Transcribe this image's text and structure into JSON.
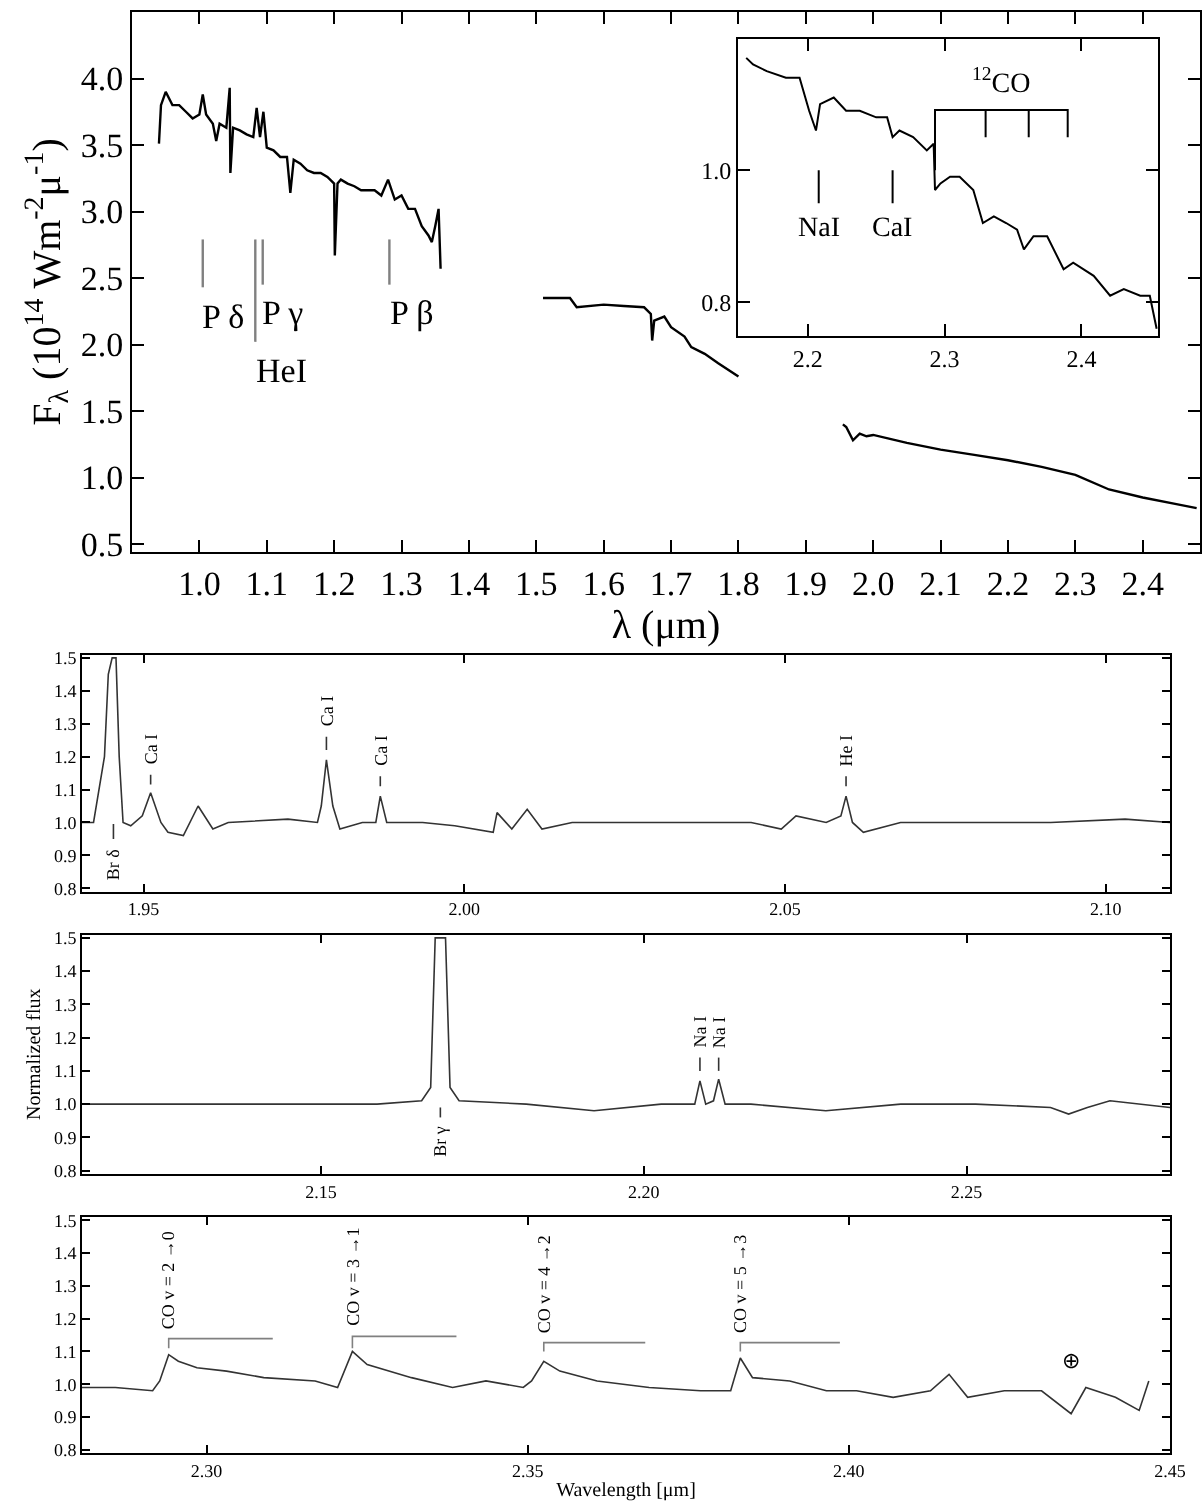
{
  "chart_data": [
    {
      "type": "line",
      "xlabel": "λ (μm)",
      "ylabel": "F$_{λ}$ (10$^{14}$ Wm$^{-2}$μ$^{-1}$)",
      "xlim": [
        0.9,
        2.485
      ],
      "ylim": [
        0.44,
        4.5
      ],
      "xticks": [
        {
          "value": 1,
          "label": "1.0"
        },
        1.1,
        1.2,
        1.3,
        1.4,
        1.5,
        1.6,
        1.7,
        1.8,
        1.9,
        {
          "value": 2,
          "label": "2.0"
        },
        2.1,
        2.2,
        2.3,
        2.4
      ],
      "yticks": [
        0.5,
        {
          "value": 1,
          "label": "1.0"
        },
        1.5,
        {
          "value": 2,
          "label": "2.0"
        },
        2.5,
        {
          "value": 3,
          "label": "3.0"
        },
        3.5,
        {
          "value": 4,
          "label": "4.0"
        }
      ],
      "series": [
        {
          "color": "#000000",
          "x": [
            0.94,
            0.943,
            0.95,
            0.96,
            0.97,
            0.98,
            0.99,
            1.0,
            1.005,
            1.01,
            1.02,
            1.025,
            1.03,
            1.04,
            1.045,
            1.046,
            1.05,
            1.06,
            1.07,
            1.08,
            1.085,
            1.09,
            1.095,
            1.1,
            1.11,
            1.12,
            1.13,
            1.135,
            1.14,
            1.15,
            1.16,
            1.17,
            1.18,
            1.19,
            1.2,
            1.201,
            1.205,
            1.21,
            1.22,
            1.23,
            1.24,
            1.25,
            1.26,
            1.27,
            1.28,
            1.29,
            1.3,
            1.31,
            1.32,
            1.33,
            1.34,
            1.345,
            1.35,
            1.355,
            1.358,
            1.4,
            1.51,
            1.55,
            1.56,
            1.6,
            1.63,
            1.66,
            1.67,
            1.672,
            1.675,
            1.69,
            1.7,
            1.72,
            1.73,
            1.75,
            1.77,
            1.8,
            1.9,
            1.955,
            1.96,
            1.97,
            1.98,
            1.99,
            2.0,
            2.05,
            2.1,
            2.15,
            2.2,
            2.25,
            2.3,
            2.35,
            2.4,
            2.45,
            2.48
          ],
          "values": [
            3.51,
            3.8,
            3.9,
            3.8,
            3.8,
            3.75,
            3.7,
            3.73,
            3.88,
            3.73,
            3.66,
            3.53,
            3.66,
            3.63,
            3.93,
            3.29,
            3.63,
            3.61,
            3.58,
            3.56,
            3.78,
            3.56,
            3.75,
            3.48,
            3.46,
            3.41,
            3.41,
            3.14,
            3.39,
            3.36,
            3.31,
            3.29,
            3.29,
            3.26,
            3.21,
            2.67,
            3.21,
            3.24,
            3.21,
            3.19,
            3.16,
            3.16,
            3.16,
            3.12,
            3.24,
            3.09,
            3.12,
            3.02,
            3.02,
            2.89,
            2.82,
            2.77,
            2.89,
            3.02,
            2.57,
            null,
            2.35,
            2.35,
            2.28,
            2.3,
            2.29,
            2.28,
            2.23,
            2.03,
            2.18,
            2.21,
            2.13,
            2.06,
            1.98,
            1.93,
            1.86,
            1.76,
            null,
            1.4,
            1.38,
            1.28,
            1.33,
            1.31,
            1.32,
            1.26,
            1.21,
            1.17,
            1.13,
            1.08,
            1.02,
            0.91,
            0.85,
            0.8,
            0.77
          ]
        },
        {
          "color": "#808080",
          "x": [
            1.005,
            1.005,
            null,
            1.083,
            1.083,
            null,
            1.094,
            1.094,
            null,
            1.282,
            1.282
          ],
          "values": [
            2.79,
            2.43,
            null,
            2.79,
            2.02,
            null,
            2.79,
            2.45,
            null,
            2.79,
            2.45
          ]
        }
      ],
      "annotations": [
        "P δ",
        "HeI",
        "P γ",
        "P β"
      ]
    },
    {
      "type": "line",
      "xlim": [
        2.149,
        2.456
      ],
      "ylim": [
        0.749,
        1.198
      ],
      "xticks": [
        2.2,
        2.3,
        2.4
      ],
      "yticks": [
        0.8,
        {
          "value": 1,
          "label": "1.0"
        }
      ],
      "series": [
        {
          "color": "#000000",
          "x": [
            2.155,
            2.16,
            2.17,
            2.184,
            2.194,
            2.201,
            2.206,
            2.209,
            2.219,
            2.228,
            2.238,
            2.25,
            2.258,
            2.262,
            2.267,
            2.277,
            2.287,
            2.292,
            2.293,
            2.297,
            2.304,
            2.311,
            2.321,
            2.328,
            2.336,
            2.345,
            2.353,
            2.358,
            2.365,
            2.375,
            2.387,
            2.394,
            2.409,
            2.421,
            2.431,
            2.443,
            2.45,
            2.455
          ],
          "values": [
            1.17,
            1.16,
            1.15,
            1.14,
            1.14,
            1.09,
            1.06,
            1.1,
            1.11,
            1.09,
            1.09,
            1.08,
            1.08,
            1.05,
            1.06,
            1.05,
            1.03,
            1.04,
            0.97,
            0.98,
            0.99,
            0.99,
            0.97,
            0.92,
            0.93,
            0.92,
            0.91,
            0.88,
            0.9,
            0.9,
            0.85,
            0.86,
            0.84,
            0.81,
            0.82,
            0.81,
            0.81,
            0.76
          ]
        },
        {
          "color": "#000000",
          "x": [
            2.208,
            2.208,
            null,
            2.262,
            2.262,
            null,
            2.293,
            2.293,
            2.39,
            2.39,
            null,
            2.33,
            2.33,
            null,
            2.3615,
            2.3615
          ],
          "values": [
            1.0,
            0.95,
            null,
            1.0,
            0.95,
            null,
            1.0,
            1.091,
            1.091,
            1.05,
            null,
            1.091,
            1.05,
            null,
            1.091,
            1.05
          ]
        }
      ],
      "annotations": [
        "NaI",
        "CaI",
        "$^{12}$CO"
      ]
    },
    {
      "type": "line",
      "xlim": [
        1.9404,
        2.11
      ],
      "ylim": [
        0.79,
        1.51
      ],
      "xticks": [
        1.95,
        {
          "value": 2,
          "label": "2.00"
        },
        2.05,
        {
          "value": 2.1,
          "label": "2.10"
        }
      ],
      "yticks": [
        0.8,
        0.9,
        {
          "value": 1,
          "label": "1.0"
        },
        1.1,
        1.2,
        1.3,
        1.4,
        1.5
      ],
      "series": [
        {
          "color": "#333333",
          "x": [
            1.9404,
            1.9422,
            1.9439,
            1.9445,
            1.9451,
            1.9457,
            1.9462,
            1.9468,
            1.948,
            1.9498,
            1.9511,
            1.9527,
            1.9538,
            1.9562,
            1.9585,
            1.9608,
            1.9632,
            1.9725,
            1.9771,
            1.9777,
            1.9785,
            1.9795,
            1.9806,
            1.9841,
            1.9862,
            1.9869,
            1.9879,
            1.9935,
            1.9985,
            2.0045,
            2.0051,
            2.0074,
            2.0098,
            2.0121,
            2.0168,
            2.0272,
            2.0447,
            2.0494,
            2.0517,
            2.0564,
            2.0587,
            2.0595,
            2.0605,
            2.0622,
            2.068,
            2.0797,
            2.0914,
            2.103,
            2.11
          ],
          "values": [
            1.0,
            1.0,
            1.2,
            1.45,
            1.5,
            1.5,
            1.2,
            1.0,
            0.99,
            1.02,
            1.09,
            1.0,
            0.97,
            0.96,
            1.05,
            0.98,
            1.0,
            1.01,
            1.0,
            1.05,
            1.19,
            1.05,
            0.98,
            1.0,
            1.0,
            1.08,
            1.0,
            1.0,
            0.99,
            0.97,
            1.03,
            0.98,
            1.04,
            0.98,
            1.0,
            1.0,
            1.0,
            0.98,
            1.02,
            1.0,
            1.02,
            1.08,
            1.0,
            0.97,
            1.0,
            1.0,
            1.0,
            1.01,
            1.0
          ]
        },
        {
          "color": "#333333",
          "x": [
            1.9453,
            1.9453,
            null,
            1.9511,
            1.9511,
            null,
            1.9785,
            1.9785,
            null,
            1.9869,
            1.9869,
            null,
            2.0595,
            2.0595
          ],
          "values": [
            0.995,
            0.95,
            null,
            1.115,
            1.145,
            null,
            1.22,
            1.26,
            null,
            1.11,
            1.14,
            null,
            1.11,
            1.14
          ]
        }
      ],
      "annotations": [
        "Br δ",
        "Ca I",
        "Ca I",
        "Ca I",
        "He I"
      ]
    },
    {
      "type": "line",
      "ylabel": "Normalized flux",
      "xlim": [
        2.113,
        2.2815
      ],
      "ylim": [
        0.79,
        1.51
      ],
      "xticks": [
        2.15,
        {
          "value": 2.2,
          "label": "2.20"
        },
        2.25
      ],
      "yticks": [
        0.8,
        0.9,
        {
          "value": 1,
          "label": "1.0"
        },
        1.1,
        1.2,
        1.3,
        1.4,
        1.5
      ],
      "series": [
        {
          "color": "#333333",
          "x": [
            2.113,
            2.1239,
            2.1355,
            2.1471,
            2.1587,
            2.1656,
            2.167,
            2.1677,
            2.1693,
            2.17,
            2.1714,
            2.1818,
            2.1923,
            2.2027,
            2.2079,
            2.2087,
            2.2096,
            2.2108,
            2.2116,
            2.2126,
            2.2166,
            2.2282,
            2.2398,
            2.2514,
            2.263,
            2.2658,
            2.2687,
            2.2722,
            2.2815
          ],
          "values": [
            1.0,
            1.0,
            1.0,
            1.0,
            1.0,
            1.01,
            1.05,
            1.5,
            1.5,
            1.05,
            1.01,
            1.0,
            0.98,
            1.0,
            1.0,
            1.07,
            1.0,
            1.01,
            1.075,
            1.0,
            1.0,
            0.98,
            1.0,
            1.0,
            0.99,
            0.97,
            0.99,
            1.01,
            0.99
          ]
        },
        {
          "color": "#333333",
          "x": [
            2.1685,
            2.1685,
            null,
            2.2087,
            2.2087,
            null,
            2.2116,
            2.2116
          ],
          "values": [
            0.99,
            0.96,
            null,
            1.1,
            1.14,
            null,
            1.1,
            1.14
          ]
        }
      ],
      "annotations": [
        "Br γ",
        "Na I",
        "Na I"
      ]
    },
    {
      "type": "line",
      "xlabel": "Wavelength [μm]",
      "xlim": [
        2.2806,
        2.45
      ],
      "ylim": [
        0.79,
        1.51
      ],
      "xticks": [
        {
          "value": 2.3,
          "label": "2.30"
        },
        2.35,
        {
          "value": 2.4,
          "label": "2.40"
        },
        2.45
      ],
      "yticks": [
        0.8,
        0.9,
        {
          "value": 1,
          "label": "1.0"
        },
        1.1,
        1.2,
        1.3,
        1.4,
        1.5
      ],
      "series": [
        {
          "color": "#333333",
          "x": [
            2.2806,
            2.2858,
            2.2916,
            2.2927,
            2.2941,
            2.2956,
            2.2985,
            2.3031,
            2.3089,
            2.3169,
            2.3204,
            2.3227,
            2.325,
            2.3319,
            2.3383,
            2.3435,
            2.3493,
            2.3506,
            2.3525,
            2.355,
            2.3608,
            2.3689,
            2.3769,
            2.3816,
            2.3831,
            2.385,
            2.3908,
            2.3965,
            2.4012,
            2.4069,
            2.4127,
            2.4156,
            2.4185,
            2.4242,
            2.43,
            2.4346,
            2.4369,
            2.4415,
            2.4452,
            2.4467
          ],
          "values": [
            0.99,
            0.99,
            0.98,
            1.01,
            1.09,
            1.07,
            1.05,
            1.04,
            1.02,
            1.01,
            0.99,
            1.1,
            1.06,
            1.02,
            0.99,
            1.01,
            0.99,
            1.01,
            1.07,
            1.04,
            1.01,
            0.99,
            0.98,
            0.98,
            1.08,
            1.02,
            1.01,
            0.98,
            0.98,
            0.96,
            0.98,
            1.03,
            0.96,
            0.98,
            0.98,
            0.91,
            0.99,
            0.96,
            0.92,
            1.01
          ]
        },
        {
          "color": "#808080",
          "x": [
            2.2941,
            2.2941,
            2.3103,
            null,
            2.3227,
            2.3227,
            2.3389,
            null,
            2.3525,
            2.3525,
            2.3683,
            null,
            2.3831,
            2.3831,
            2.3986
          ],
          "values": [
            1.11,
            1.139,
            1.139,
            null,
            1.11,
            1.146,
            1.146,
            null,
            1.1,
            1.127,
            1.127,
            null,
            1.1,
            1.127,
            1.127
          ]
        }
      ],
      "annotations": [
        "CO v = 2 →0",
        "CO v = 3 →1",
        "CO v = 4 →2",
        "CO v = 5 →3",
        {
          "text": "⊕",
          "x": 2.4346,
          "y": 0.91
        }
      ]
    }
  ]
}
